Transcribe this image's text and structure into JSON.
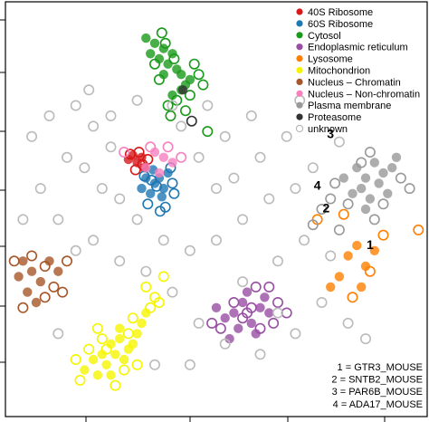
{
  "chart_data": {
    "type": "scatter",
    "title": "",
    "xlabel": "",
    "ylabel": "",
    "grid": false,
    "legend_position": "top-right",
    "series": [
      {
        "name": "40S Ribosome",
        "color": "#d7191c",
        "points": [
          [
            -0.05,
            0.42
          ],
          [
            0.0,
            0.35
          ],
          [
            0.05,
            0.4
          ],
          [
            -0.1,
            0.38
          ],
          [
            0.08,
            0.3
          ],
          [
            0.02,
            0.45
          ],
          [
            0.12,
            0.38
          ],
          [
            -0.02,
            0.28
          ],
          [
            0.06,
            0.33
          ],
          [
            -0.08,
            0.43
          ]
        ]
      },
      {
        "name": "60S Ribosome",
        "color": "#1f78b4",
        "points": [
          [
            0.1,
            0.2
          ],
          [
            0.2,
            0.15
          ],
          [
            0.3,
            0.1
          ],
          [
            0.15,
            0.05
          ],
          [
            0.25,
            0.2
          ],
          [
            0.35,
            0.25
          ],
          [
            0.05,
            0.1
          ],
          [
            0.28,
            0.02
          ],
          [
            0.18,
            0.28
          ],
          [
            0.4,
            0.15
          ],
          [
            0.12,
            -0.05
          ],
          [
            0.32,
            -0.08
          ],
          [
            0.22,
            0.12
          ],
          [
            0.08,
            0.22
          ],
          [
            0.42,
            0.05
          ],
          [
            0.38,
            0.3
          ],
          [
            0.26,
            -0.12
          ],
          [
            0.16,
            0.18
          ]
        ]
      },
      {
        "name": "Cytosol",
        "color": "#1a9a1a",
        "points": [
          [
            0.1,
            1.55
          ],
          [
            0.2,
            1.5
          ],
          [
            0.3,
            1.45
          ],
          [
            0.4,
            1.4
          ],
          [
            0.25,
            1.35
          ],
          [
            0.35,
            1.3
          ],
          [
            0.15,
            1.4
          ],
          [
            0.45,
            1.25
          ],
          [
            0.5,
            1.2
          ],
          [
            0.55,
            1.1
          ],
          [
            0.6,
            1.15
          ],
          [
            0.3,
            1.2
          ],
          [
            0.4,
            1.0
          ],
          [
            0.5,
            1.05
          ],
          [
            0.2,
            1.3
          ],
          [
            0.65,
            1.3
          ],
          [
            0.7,
            1.2
          ],
          [
            0.28,
            1.6
          ],
          [
            0.45,
            0.95
          ],
          [
            0.35,
            0.9
          ],
          [
            0.6,
            1.0
          ],
          [
            0.75,
            1.1
          ],
          [
            0.8,
            0.65
          ],
          [
            0.38,
            0.8
          ],
          [
            0.55,
            0.85
          ],
          [
            0.25,
            1.15
          ],
          [
            0.42,
            1.35
          ],
          [
            0.32,
            1.5
          ]
        ]
      },
      {
        "name": "Endoplasmic reticulum",
        "color": "#984ea3",
        "points": [
          [
            1.1,
            -1.1
          ],
          [
            1.2,
            -1.0
          ],
          [
            1.3,
            -1.2
          ],
          [
            1.4,
            -1.05
          ],
          [
            1.0,
            -1.15
          ],
          [
            1.25,
            -0.9
          ],
          [
            1.5,
            -1.1
          ],
          [
            0.9,
            -1.05
          ],
          [
            1.35,
            -1.3
          ],
          [
            1.15,
            -1.25
          ],
          [
            1.45,
            -0.95
          ],
          [
            1.05,
            -1.35
          ],
          [
            1.6,
            -1.0
          ],
          [
            1.2,
            -1.15
          ],
          [
            1.3,
            -1.05
          ],
          [
            0.95,
            -1.25
          ],
          [
            1.55,
            -1.2
          ],
          [
            1.4,
            -1.25
          ],
          [
            1.1,
            -1.0
          ],
          [
            1.25,
            -1.1
          ],
          [
            1.7,
            -1.1
          ],
          [
            1.35,
            -0.85
          ],
          [
            0.85,
            -1.2
          ],
          [
            1.5,
            -0.85
          ]
        ]
      },
      {
        "name": "Lysosome",
        "color": "#ff7f00",
        "points": [
          [
            2.4,
            -0.55
          ],
          [
            2.5,
            -0.45
          ],
          [
            2.6,
            -0.65
          ],
          [
            2.3,
            -0.75
          ],
          [
            2.7,
            -0.5
          ],
          [
            2.2,
            -0.85
          ],
          [
            2.55,
            -0.85
          ],
          [
            2.8,
            -0.35
          ],
          [
            2.45,
            -0.95
          ],
          [
            3.2,
            -0.3
          ],
          [
            2.35,
            -0.15
          ],
          [
            2.65,
            -0.7
          ],
          [
            2.05,
            -0.2
          ]
        ]
      },
      {
        "name": "Mitochondrion",
        "color": "#f5f500",
        "points": [
          [
            -0.3,
            -1.4
          ],
          [
            -0.2,
            -1.35
          ],
          [
            -0.1,
            -1.45
          ],
          [
            0.0,
            -1.3
          ],
          [
            -0.4,
            -1.5
          ],
          [
            -0.5,
            -1.55
          ],
          [
            -0.35,
            -1.6
          ],
          [
            -0.25,
            -1.5
          ],
          [
            -0.15,
            -1.55
          ],
          [
            -0.05,
            -1.4
          ],
          [
            0.05,
            -1.2
          ],
          [
            0.1,
            -1.1
          ],
          [
            -0.45,
            -1.7
          ],
          [
            -0.6,
            -1.65
          ],
          [
            -0.3,
            -1.7
          ],
          [
            -0.2,
            -1.25
          ],
          [
            0.15,
            -1.05
          ],
          [
            0.2,
            -0.95
          ],
          [
            -0.55,
            -1.45
          ],
          [
            -0.4,
            -1.35
          ],
          [
            -0.1,
            -1.3
          ],
          [
            0.0,
            -1.6
          ],
          [
            -0.7,
            -1.55
          ],
          [
            -0.25,
            -1.8
          ],
          [
            0.25,
            -1.0
          ],
          [
            -0.65,
            -1.75
          ],
          [
            -0.35,
            -1.45
          ],
          [
            -0.05,
            -1.15
          ],
          [
            0.1,
            -0.85
          ],
          [
            -0.15,
            -1.65
          ],
          [
            0.3,
            -0.75
          ],
          [
            -0.45,
            -1.25
          ]
        ]
      },
      {
        "name": "Nucleus – Chromatin",
        "color": "#a65628",
        "points": [
          [
            -1.3,
            -0.6
          ],
          [
            -1.2,
            -0.7
          ],
          [
            -1.1,
            -0.8
          ],
          [
            -1.0,
            -0.6
          ],
          [
            -1.25,
            -0.9
          ],
          [
            -1.15,
            -1.0
          ],
          [
            -1.35,
            -0.75
          ],
          [
            -0.9,
            -0.7
          ],
          [
            -1.05,
            -0.95
          ],
          [
            -0.95,
            -0.85
          ],
          [
            -0.8,
            -0.6
          ],
          [
            -1.4,
            -0.6
          ],
          [
            -1.3,
            -1.05
          ],
          [
            -0.85,
            -0.9
          ],
          [
            -1.2,
            -0.55
          ],
          [
            -1.05,
            -0.65
          ]
        ]
      },
      {
        "name": "Nucleus – Non-chromatin",
        "color": "#f781bf",
        "points": [
          [
            0.2,
            0.45
          ],
          [
            0.3,
            0.4
          ],
          [
            0.1,
            0.3
          ],
          [
            0.4,
            0.35
          ],
          [
            0.25,
            0.25
          ],
          [
            0.5,
            0.4
          ],
          [
            -0.15,
            0.45
          ],
          [
            0.35,
            0.5
          ],
          [
            0.15,
            0.5
          ]
        ]
      },
      {
        "name": "Plasma membrane",
        "color": "#999999",
        "points": [
          [
            2.5,
            0.3
          ],
          [
            2.6,
            0.2
          ],
          [
            2.7,
            0.35
          ],
          [
            2.55,
            0.1
          ],
          [
            2.8,
            0.25
          ],
          [
            2.45,
            0.05
          ],
          [
            2.65,
            0.0
          ],
          [
            2.75,
            0.15
          ],
          [
            2.9,
            0.3
          ],
          [
            2.35,
            0.2
          ],
          [
            2.85,
            0.05
          ],
          [
            2.6,
            -0.1
          ],
          [
            2.95,
            0.4
          ],
          [
            2.4,
            -0.05
          ],
          [
            3.0,
            0.2
          ],
          [
            2.55,
            0.35
          ],
          [
            2.7,
            -0.2
          ],
          [
            2.1,
            -0.1
          ],
          [
            2.2,
            0.0
          ],
          [
            2.0,
            -0.25
          ],
          [
            2.25,
            0.15
          ],
          [
            2.8,
            -0.05
          ],
          [
            2.3,
            -0.3
          ],
          [
            2.65,
            0.45
          ],
          [
            3.1,
            0.1
          ]
        ]
      },
      {
        "name": "Proteasome",
        "color": "#333333",
        "points": [
          [
            0.52,
            1.05
          ],
          [
            0.62,
            0.75
          ]
        ]
      },
      {
        "name": "unknown",
        "color": "#bbbbbb",
        "points": [
          [
            -1.0,
            0.8
          ],
          [
            -0.7,
            0.9
          ],
          [
            -0.5,
            0.7
          ],
          [
            -0.3,
            0.8
          ],
          [
            -0.8,
            0.4
          ],
          [
            -0.6,
            0.3
          ],
          [
            -0.4,
            0.1
          ],
          [
            -0.2,
            0.0
          ],
          [
            0.0,
            -0.2
          ],
          [
            0.3,
            -0.4
          ],
          [
            0.6,
            -0.5
          ],
          [
            0.9,
            -0.4
          ],
          [
            1.2,
            -0.2
          ],
          [
            1.5,
            0.0
          ],
          [
            1.8,
            0.1
          ],
          [
            2.0,
            0.3
          ],
          [
            1.0,
            0.6
          ],
          [
            1.3,
            0.8
          ],
          [
            0.8,
            0.9
          ],
          [
            0.5,
            0.7
          ],
          [
            0.7,
            0.4
          ],
          [
            1.1,
            0.2
          ],
          [
            1.4,
            0.4
          ],
          [
            -1.1,
            0.1
          ],
          [
            -0.9,
            -0.2
          ],
          [
            -0.5,
            -0.4
          ],
          [
            -0.2,
            -0.6
          ],
          [
            0.1,
            -0.7
          ],
          [
            0.4,
            -0.9
          ],
          [
            0.7,
            -1.2
          ],
          [
            1.0,
            -1.4
          ],
          [
            1.4,
            -1.5
          ],
          [
            1.8,
            -1.3
          ],
          [
            2.1,
            -1.0
          ],
          [
            2.4,
            -1.2
          ],
          [
            -0.7,
            -0.5
          ],
          [
            1.6,
            -0.6
          ],
          [
            1.9,
            -0.4
          ],
          [
            2.2,
            -0.55
          ],
          [
            0.9,
            0.1
          ],
          [
            -1.2,
            0.6
          ],
          [
            1.7,
            0.6
          ],
          [
            0.4,
            0.9
          ],
          [
            -0.3,
            0.5
          ],
          [
            2.3,
            0.55
          ],
          [
            1.2,
            -0.8
          ],
          [
            0.2,
            -1.6
          ],
          [
            -0.9,
            -1.3
          ],
          [
            0.6,
            -1.6
          ],
          [
            1.6,
            -1.1
          ],
          [
            -1.3,
            -0.2
          ],
          [
            2.6,
            -1.35
          ],
          [
            0.0,
            0.95
          ],
          [
            1.85,
            0.95
          ],
          [
            -0.55,
            1.05
          ]
        ]
      }
    ],
    "labeled_points": [
      {
        "id": "1",
        "x": 2.65,
        "y": -0.45
      },
      {
        "id": "2",
        "x": 2.15,
        "y": -0.1
      },
      {
        "id": "3",
        "x": 2.2,
        "y": 0.62
      },
      {
        "id": "4",
        "x": 2.05,
        "y": 0.12
      }
    ],
    "annotations": [
      "1 = GTR3_MOUSE",
      "2 = SNTB2_MOUSE",
      "3 = PAR6B_MOUSE",
      "4 = ADA17_MOUSE"
    ],
    "xlim": [
      -1.5,
      3.3
    ],
    "ylim": [
      -2.1,
      1.9
    ]
  }
}
